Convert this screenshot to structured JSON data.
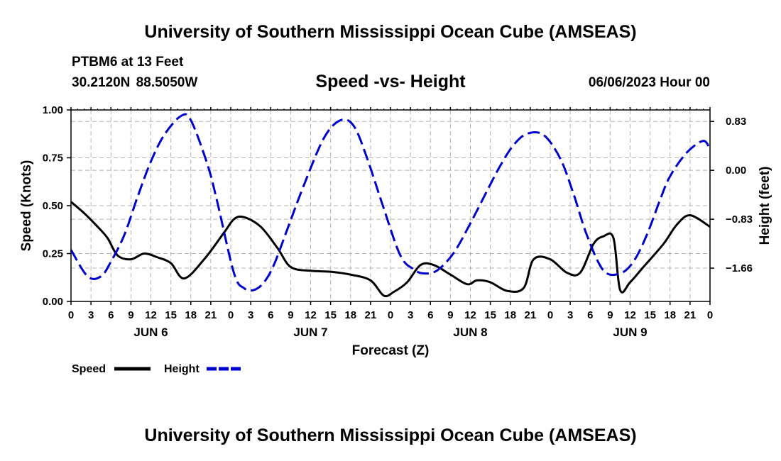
{
  "title": "University of Southern Mississippi Ocean Cube (AMSEAS)",
  "footer_title": "University of Southern Mississippi Ocean Cube (AMSEAS)",
  "station": "PTBM6 at 13 Feet",
  "location": "30.2120N 88.5050W",
  "subtitle": "Speed -vs- Height",
  "datetime": "06/06/2023 Hour 00",
  "colors": {
    "speed": "#000000",
    "height": "#0000cc",
    "grid": "#b4b4b4"
  },
  "chart_data": {
    "type": "line",
    "xlabel": "Forecast (Z)",
    "ylabel": "Speed (Knots)",
    "y2label": "Height (feet)",
    "xlim": [
      0,
      96
    ],
    "ylim": [
      0,
      1
    ],
    "y2lim": [
      -2.225,
      1.025
    ],
    "x_ticks": [
      0,
      3,
      6,
      9,
      12,
      15,
      18,
      21,
      24,
      27,
      30,
      33,
      36,
      39,
      42,
      45,
      48,
      51,
      54,
      57,
      60,
      63,
      66,
      69,
      72,
      75,
      78,
      81,
      84,
      87,
      90,
      93,
      96
    ],
    "x_tick_labels": [
      "0",
      "3",
      "6",
      "9",
      "12",
      "15",
      "18",
      "21",
      "0",
      "3",
      "6",
      "9",
      "12",
      "15",
      "18",
      "21",
      "0",
      "3",
      "6",
      "9",
      "12",
      "15",
      "18",
      "21",
      "0",
      "3",
      "6",
      "9",
      "12",
      "15",
      "18",
      "21",
      "0"
    ],
    "day_labels": [
      {
        "x": 12,
        "label": "JUN 6"
      },
      {
        "x": 36,
        "label": "JUN 7"
      },
      {
        "x": 60,
        "label": "JUN 8"
      },
      {
        "x": 84,
        "label": "JUN 9"
      }
    ],
    "y_ticks": [
      0,
      0.25,
      0.5,
      0.75,
      1.0
    ],
    "y_tick_labels": [
      "0.00",
      "0.25",
      "0.50",
      "0.75",
      "1.00"
    ],
    "y2_ticks": [
      0.83,
      0.0,
      -0.83,
      -1.66
    ],
    "y2_tick_labels": [
      "0.83",
      "0.00",
      "−0.83",
      "−1.66"
    ],
    "series": [
      {
        "name": "Speed",
        "axis": "left",
        "style": "solid",
        "x": [
          0,
          2,
          4,
          5.5,
          7,
          9,
          11,
          13,
          15,
          17,
          20,
          23,
          24.5,
          26,
          28.5,
          31,
          33,
          36,
          39,
          42,
          45,
          47,
          48.5,
          50.5,
          52.5,
          54.5,
          57,
          59.5,
          61,
          63,
          65.5,
          68,
          69.5,
          72,
          74.5,
          76.5,
          78.5,
          80,
          81.5,
          82.5,
          84,
          86,
          89,
          91,
          93,
          96
        ],
        "y": [
          0.52,
          0.46,
          0.39,
          0.33,
          0.24,
          0.22,
          0.25,
          0.23,
          0.2,
          0.12,
          0.22,
          0.36,
          0.43,
          0.44,
          0.39,
          0.28,
          0.18,
          0.16,
          0.155,
          0.14,
          0.11,
          0.03,
          0.05,
          0.1,
          0.19,
          0.19,
          0.14,
          0.09,
          0.11,
          0.1,
          0.055,
          0.07,
          0.22,
          0.22,
          0.15,
          0.15,
          0.3,
          0.34,
          0.33,
          0.06,
          0.1,
          0.18,
          0.3,
          0.4,
          0.45,
          0.39
        ]
      },
      {
        "name": "Height",
        "axis": "right",
        "style": "dashed",
        "x": [
          0,
          2.5,
          4.5,
          6,
          8,
          10,
          12,
          14,
          16.5,
          18,
          20.5,
          22,
          24.5,
          26,
          27.5,
          29,
          30.5,
          32.5,
          35,
          38,
          40.5,
          42.5,
          44.5,
          47,
          49.5,
          51.5,
          53,
          55,
          57.5,
          60,
          62.5,
          64.5,
          66.5,
          68.5,
          71,
          73.5,
          75.5,
          77.5,
          80,
          82.5,
          84.5,
          86.5,
          88.5,
          90,
          92.5,
          95,
          96
        ],
        "y": [
          -1.35,
          -1.8,
          -1.8,
          -1.55,
          -1.1,
          -0.45,
          0.15,
          0.6,
          0.92,
          0.85,
          0.1,
          -0.55,
          -1.75,
          -2.0,
          -2.03,
          -1.9,
          -1.6,
          -1.0,
          -0.25,
          0.55,
          0.85,
          0.75,
          0.2,
          -0.65,
          -1.45,
          -1.68,
          -1.75,
          -1.7,
          -1.4,
          -0.9,
          -0.35,
          0.08,
          0.43,
          0.62,
          0.6,
          0.2,
          -0.4,
          -1.1,
          -1.7,
          -1.75,
          -1.55,
          -1.1,
          -0.5,
          -0.1,
          0.3,
          0.5,
          0.35
        ]
      }
    ],
    "legend": [
      {
        "label": "Speed",
        "style": "solid"
      },
      {
        "label": "Height",
        "style": "dashed"
      }
    ],
    "grid": true
  }
}
